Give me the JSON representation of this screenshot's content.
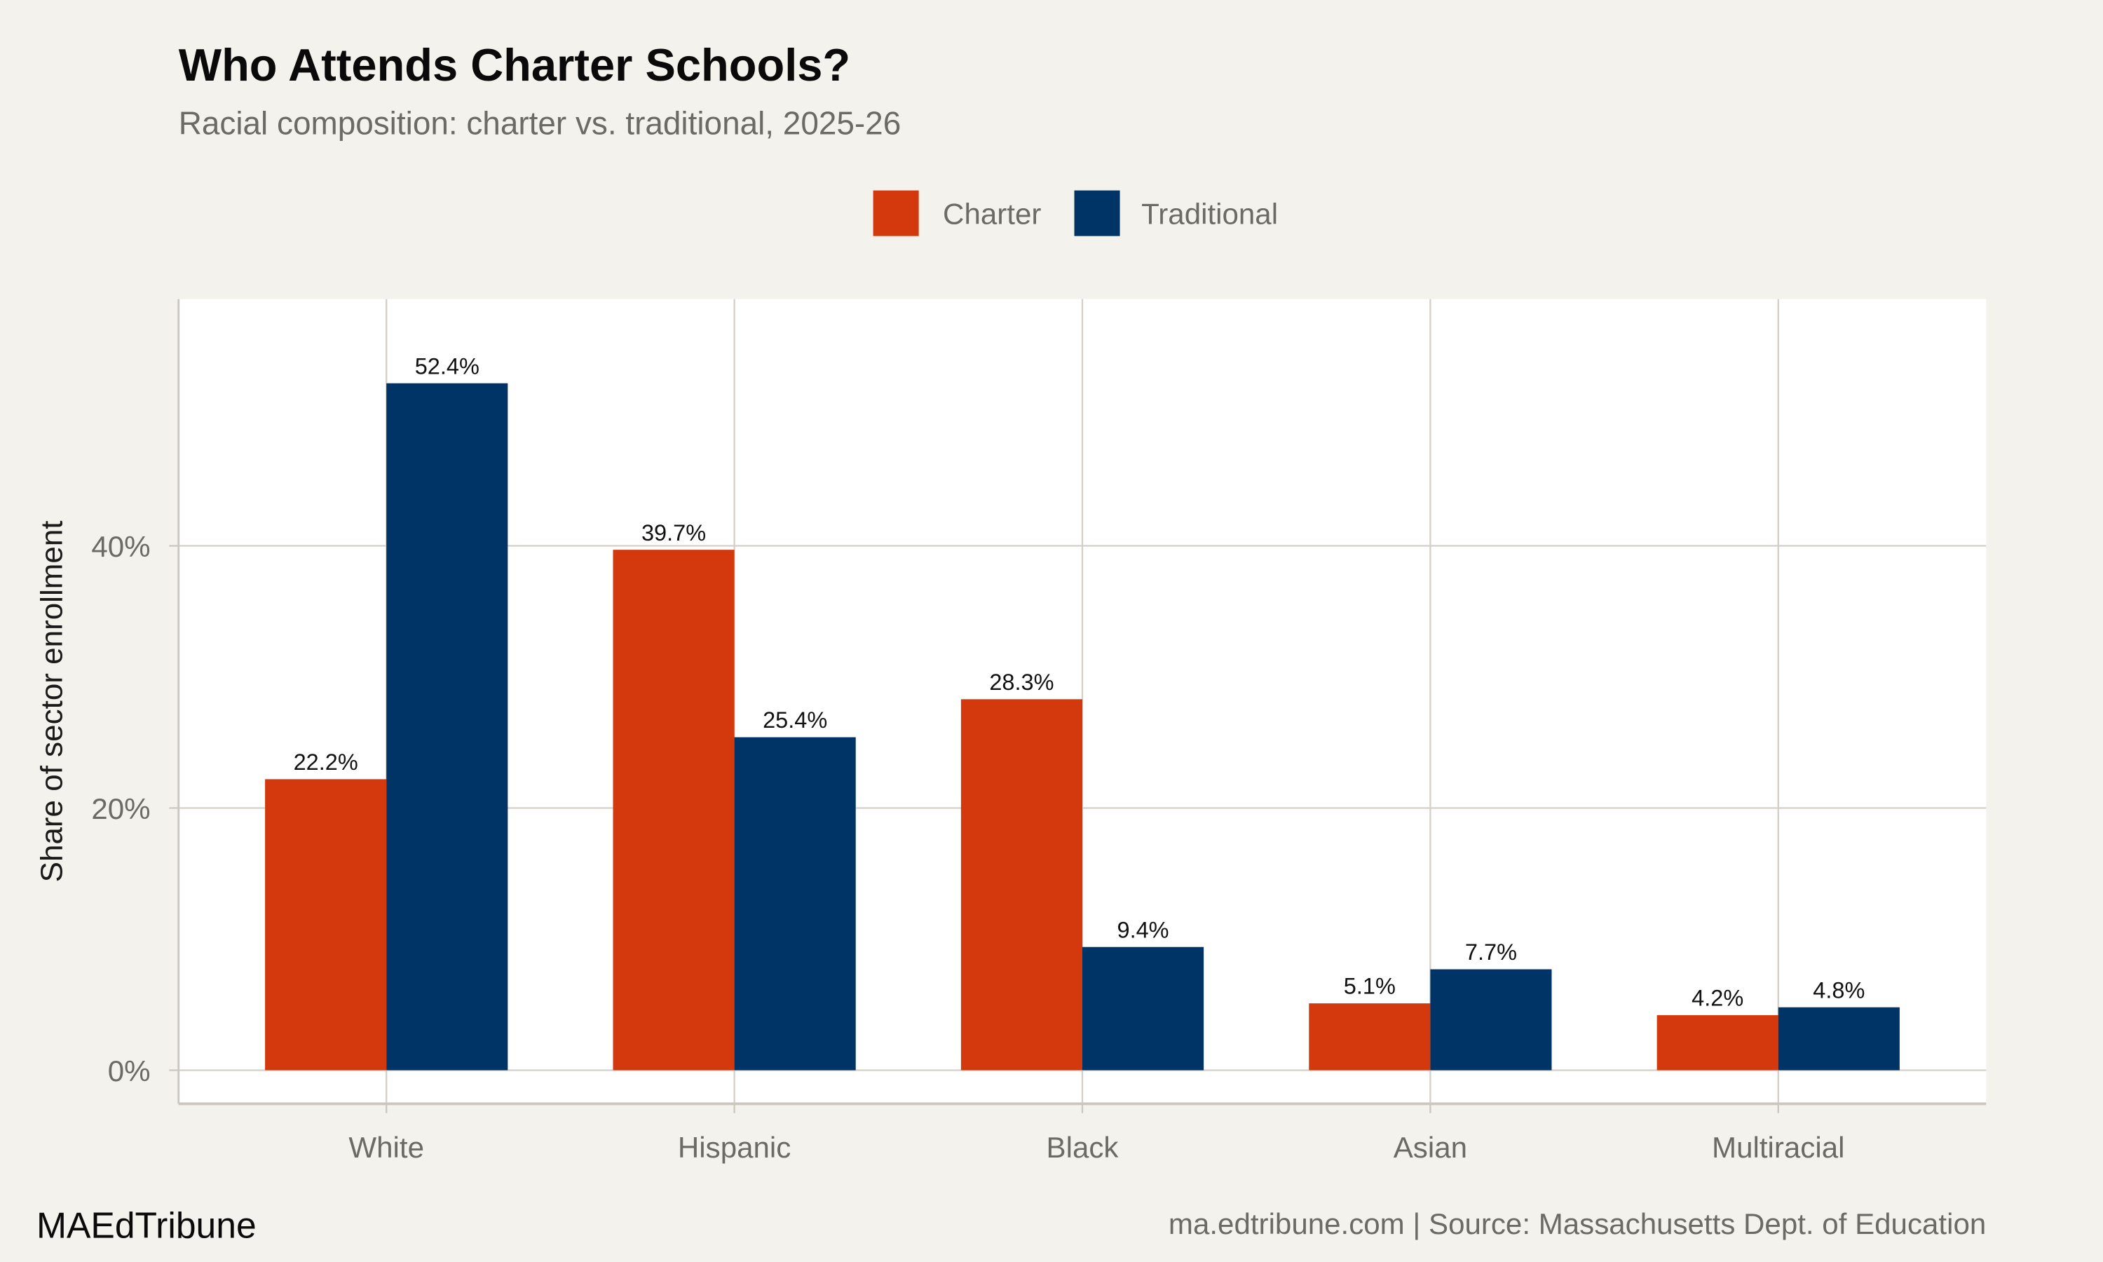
{
  "chart_data": {
    "type": "bar",
    "title": "Who Attends Charter Schools?",
    "subtitle": "Racial composition: charter vs. traditional, 2025-26",
    "xlabel": "",
    "ylabel": "Share of sector enrollment",
    "categories": [
      "White",
      "Hispanic",
      "Black",
      "Asian",
      "Multiracial"
    ],
    "series": [
      {
        "name": "Charter",
        "color": "#d4380d",
        "values": [
          22.2,
          39.7,
          28.3,
          5.1,
          4.2
        ],
        "labels": [
          "22.2%",
          "39.7%",
          "28.3%",
          "5.1%",
          "4.2%"
        ]
      },
      {
        "name": "Traditional",
        "color": "#003366",
        "values": [
          52.4,
          25.4,
          9.4,
          7.7,
          4.8
        ],
        "labels": [
          "52.4%",
          "25.4%",
          "9.4%",
          "7.7%",
          "4.8%"
        ]
      }
    ],
    "ylim": [
      0,
      57
    ],
    "yticks": [
      0,
      20,
      40
    ],
    "ytick_labels": [
      "0%",
      "20%",
      "40%"
    ],
    "grid": true,
    "legend_position": "top-center"
  },
  "footer": {
    "brand": "MAEdTribune",
    "source": "ma.edtribune.com | Source: Massachusetts Dept. of Education"
  },
  "colors": {
    "background": "#f4f2ed",
    "panel": "#ffffff",
    "grid": "#d3cfc8"
  }
}
